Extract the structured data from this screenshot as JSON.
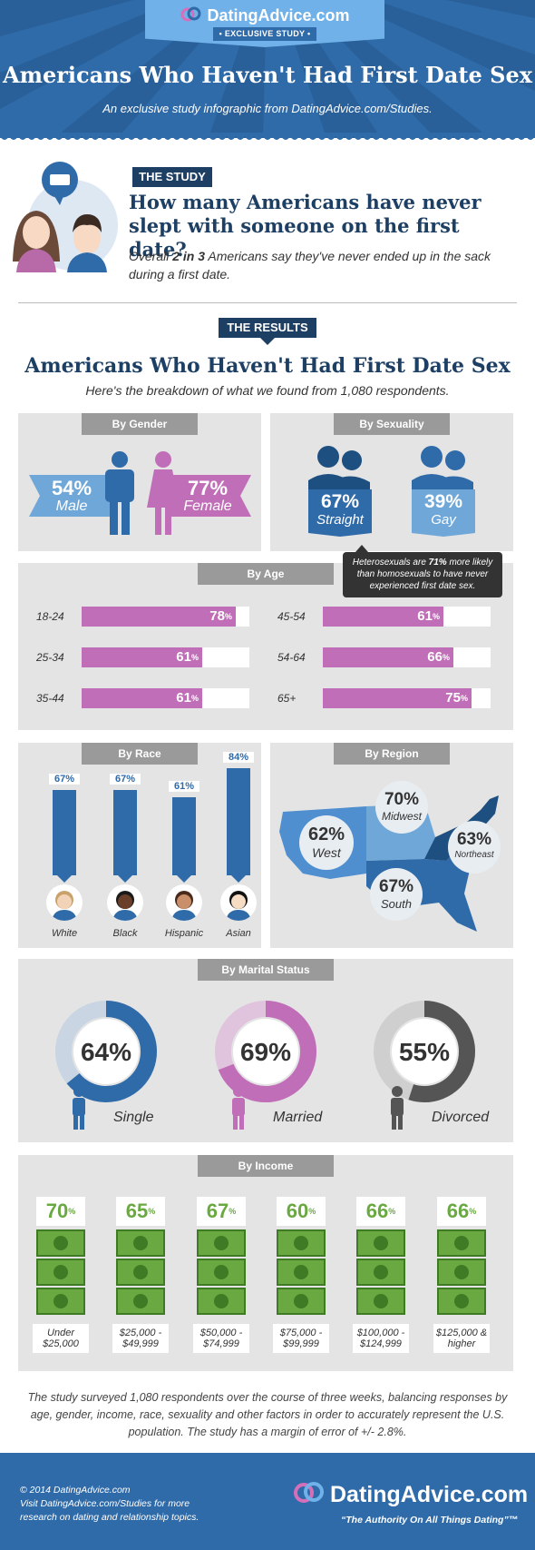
{
  "header": {
    "brand": "DatingAdvice.com",
    "badge": "• EXCLUSIVE STUDY •",
    "title": "Americans Who Haven't Had First Date Sex",
    "subtitle": "An exclusive study infographic from DatingAdvice.com/Studies."
  },
  "study": {
    "tag": "THE STUDY",
    "question": "How many Americans have never slept with someone on the first date?",
    "answer_pre": "Overall ",
    "answer_bold": "2 in 3",
    "answer_post": " Americans say they've never ended up in the sack during a first date."
  },
  "results": {
    "tag": "THE RESULTS",
    "title": "Americans Who Haven't Had First Date Sex",
    "subtitle": "Here's the breakdown of what we found from 1,080 respondents."
  },
  "colors": {
    "blue": "#2f6aa9",
    "light_blue": "#6fa7d8",
    "pink": "#c16eb8",
    "green": "#6aa842",
    "navy": "#1d3f63",
    "panel": "#e4e4e4"
  },
  "chart_data": [
    {
      "type": "bar",
      "title": "By Gender",
      "categories": [
        "Male",
        "Female"
      ],
      "values": [
        54,
        77
      ],
      "unit": "%"
    },
    {
      "type": "bar",
      "title": "By Sexuality",
      "categories": [
        "Straight",
        "Gay"
      ],
      "values": [
        67,
        39
      ],
      "unit": "%",
      "annotation": "Heterosexuals are 71% more likely than homosexuals to have never experienced first date sex."
    },
    {
      "type": "bar",
      "title": "By Age",
      "categories": [
        "18-24",
        "25-34",
        "35-44",
        "45-54",
        "54-64",
        "65+"
      ],
      "values": [
        78,
        61,
        61,
        61,
        66,
        75
      ],
      "unit": "%"
    },
    {
      "type": "bar",
      "title": "By Race",
      "categories": [
        "White",
        "Black",
        "Hispanic",
        "Asian"
      ],
      "values": [
        67,
        67,
        61,
        84
      ],
      "unit": "%"
    },
    {
      "type": "bar",
      "title": "By Region",
      "categories": [
        "West",
        "Midwest",
        "Northeast",
        "South"
      ],
      "values": [
        62,
        70,
        63,
        67
      ],
      "unit": "%"
    },
    {
      "type": "pie",
      "title": "By Marital Status",
      "categories": [
        "Single",
        "Married",
        "Divorced"
      ],
      "values": [
        64,
        69,
        55
      ],
      "unit": "%"
    },
    {
      "type": "bar",
      "title": "By Income",
      "categories": [
        "Under $25,000",
        "$25,000 - $49,999",
        "$50,000 - $74,999",
        "$75,000 - $99,999",
        "$100,000 - $124,999",
        "$125,000 & higher"
      ],
      "values": [
        70,
        65,
        67,
        60,
        66,
        66
      ],
      "unit": "%"
    }
  ],
  "labels": {
    "gender": {
      "male": "Male",
      "female": "Female",
      "male_val": "54%",
      "female_val": "77%"
    },
    "sexuality": {
      "straight": "Straight",
      "gay": "Gay",
      "straight_val": "67%",
      "gay_val": "39%",
      "note_pre": "Heterosexuals are ",
      "note_bold": "71%",
      "note_post": " more likely than homosexuals to have never experienced first date sex."
    },
    "age": {
      "l0": "18-24",
      "l1": "25-34",
      "l2": "35-44",
      "l3": "45-54",
      "l4": "54-64",
      "l5": "65+",
      "v0": "78",
      "v1": "61",
      "v2": "61",
      "v3": "61",
      "v4": "66",
      "v5": "75",
      "pct": "%"
    },
    "race": {
      "l0": "White",
      "l1": "Black",
      "l2": "Hispanic",
      "l3": "Asian",
      "v0": "67%",
      "v1": "67%",
      "v2": "61%",
      "v3": "84%"
    },
    "region": {
      "west": "West",
      "midwest": "Midwest",
      "northeast": "Northeast",
      "south": "South",
      "west_val": "62%",
      "midwest_val": "70%",
      "northeast_val": "63%",
      "south_val": "67%"
    },
    "marital": {
      "single": "Single",
      "married": "Married",
      "divorced": "Divorced",
      "single_val": "64%",
      "married_val": "69%",
      "divorced_val": "55%"
    },
    "income": {
      "v0": "70",
      "v1": "65",
      "v2": "67",
      "v3": "60",
      "v4": "66",
      "v5": "66",
      "pct": "%",
      "l0a": "Under",
      "l0b": "$25,000",
      "l1a": "$25,000 -",
      "l1b": "$49,999",
      "l2a": "$50,000 -",
      "l2b": "$74,999",
      "l3a": "$75,000 -",
      "l3b": "$99,999",
      "l4a": "$100,000 -",
      "l4b": "$124,999",
      "l5a": "$125,000 &",
      "l5b": "higher"
    }
  },
  "panel_titles": {
    "gender": "By Gender",
    "sexuality": "By Sexuality",
    "age": "By Age",
    "race": "By Race",
    "region": "By Region",
    "marital": "By Marital Status",
    "income": "By Income"
  },
  "methodology": "The study surveyed 1,080 respondents over the course of three weeks, balancing responses by age, gender, income, race, sexuality and other factors in order to accurately represent the U.S. population. The study has a margin of error of +/- 2.8%.",
  "footer": {
    "copyright": "© 2014 DatingAdvice.com",
    "visit_line1": "Visit DatingAdvice.com/Studies for more",
    "visit_line2": "research on dating and relationship topics.",
    "brand": "DatingAdvice.com",
    "tagline": "“The Authority On All Things Dating”™"
  }
}
